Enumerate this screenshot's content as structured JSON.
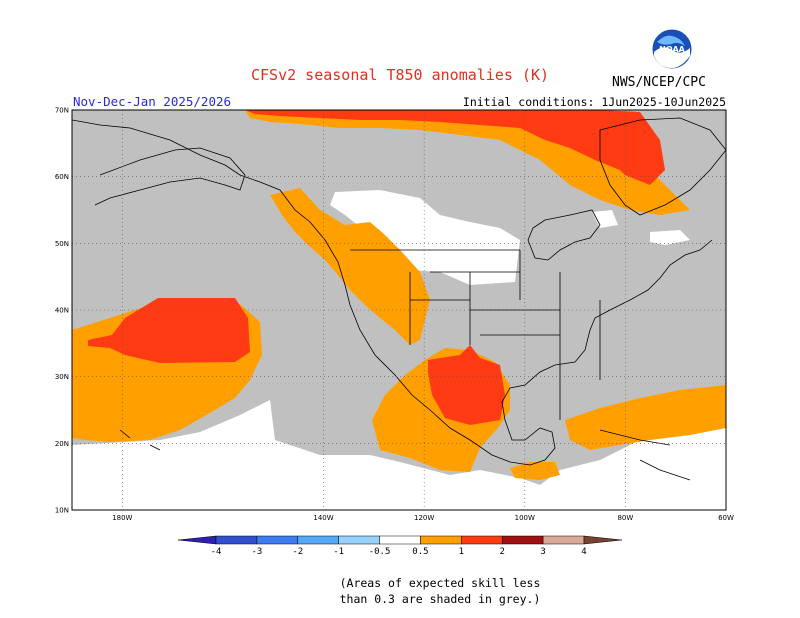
{
  "header": {
    "title": "CFSv2 seasonal T850 anomalies (K)",
    "period": "Nov-Dec-Jan 2025/2026",
    "initial_conditions": "Initial conditions: 1Jun2025-10Jun2025",
    "agency": "NWS/NCEP/CPC",
    "logo_text": "NOAA"
  },
  "map": {
    "lon_range": [
      -190,
      -60
    ],
    "lat_range": [
      10,
      70
    ],
    "lat_ticks": [
      {
        "value": 70,
        "label": "70N"
      },
      {
        "value": 60,
        "label": "60N"
      },
      {
        "value": 50,
        "label": "50N"
      },
      {
        "value": 40,
        "label": "40N"
      },
      {
        "value": 30,
        "label": "30N"
      },
      {
        "value": 20,
        "label": "20N"
      },
      {
        "value": 10,
        "label": "10N"
      }
    ],
    "lon_ticks": [
      {
        "value": -180,
        "label": "180W"
      },
      {
        "value": -140,
        "label": "140W"
      },
      {
        "value": -120,
        "label": "120W"
      },
      {
        "value": -100,
        "label": "100W"
      },
      {
        "value": -80,
        "label": "80W"
      },
      {
        "value": -60,
        "label": "60W"
      }
    ],
    "grid": true,
    "colors": {
      "grey_low_skill": "#c0c0c0",
      "white_no_signal": "#ffffff",
      "anom_0_5_1": "#ff9f00",
      "anom_1_2": "#ff3b14",
      "coastline": "#000000"
    }
  },
  "legend": {
    "labels": [
      "-4",
      "-3",
      "-2",
      "-1",
      "-0.5",
      "0.5",
      "1",
      "2",
      "3",
      "4"
    ],
    "colors": [
      "#3020b0",
      "#3050d0",
      "#3c7cf0",
      "#55a8f5",
      "#96d2fa",
      "#ffffff",
      "#ff9f00",
      "#ff3b14",
      "#a01010",
      "#d8a898",
      "#7a4030"
    ],
    "note_line1": "(Areas of expected skill less",
    "note_line2": "than 0.3 are shaded in grey.)"
  }
}
